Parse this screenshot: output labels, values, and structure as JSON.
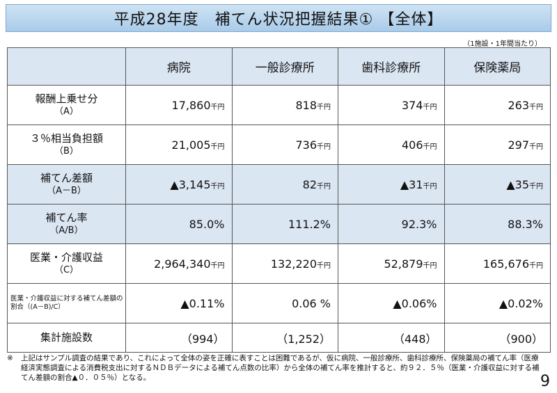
{
  "title": "平成28年度　補てん状況把握結果① 【全体】",
  "unit_note": "（1施設・1年間当たり）",
  "columns": [
    "病院",
    "一般診療所",
    "歯科診療所",
    "保険薬局"
  ],
  "rows": [
    {
      "label": "報酬上乗せ分",
      "sub": "（A）",
      "values": [
        "17,860",
        "818",
        "374",
        "263"
      ],
      "unit": "千円"
    },
    {
      "label": "３％相当負担額",
      "sub": "（B）",
      "values": [
        "21,005",
        "736",
        "406",
        "297"
      ],
      "unit": "千円"
    },
    {
      "label": "補てん差額",
      "sub": "（A－B）",
      "values": [
        "▲3,145",
        "82",
        "▲31",
        "▲35"
      ],
      "unit": "千円"
    },
    {
      "label": "補てん率",
      "sub": "（A/B）",
      "values": [
        "85.0%",
        "111.2%",
        "92.3%",
        "88.3%"
      ],
      "unit": ""
    },
    {
      "label": "医業・介護収益",
      "sub": "（C）",
      "values": [
        "2,964,340",
        "132,220",
        "52,879",
        "165,676"
      ],
      "unit": "千円"
    },
    {
      "label": "医業・介護収益に対する補てん差額の",
      "sub": "割合（(A－B)/C）",
      "values": [
        "▲0.11%",
        "0.06 %",
        "▲0.06%",
        "▲0.02%"
      ],
      "unit": ""
    },
    {
      "label": "集計施設数",
      "sub": "",
      "values": [
        "（994）",
        "（1,252）",
        "（448）",
        "（900）"
      ],
      "unit": ""
    }
  ],
  "footnote_mark": "※",
  "footnote": "上記はサンプル調査の結果であり、これによって全体の姿を正確に表すことは困難であるが、仮に病院、一般診療所、歯科診療所、保険薬局の補てん率（医療経済実態調査による消費税支出に対するＮＤＢデータによる補てん点数の比率）から全体の補てん率を推計すると、約９２．５％（医業・介護収益に対する補てん差額の割合▲０．０５％）となる。",
  "page_number": "9"
}
